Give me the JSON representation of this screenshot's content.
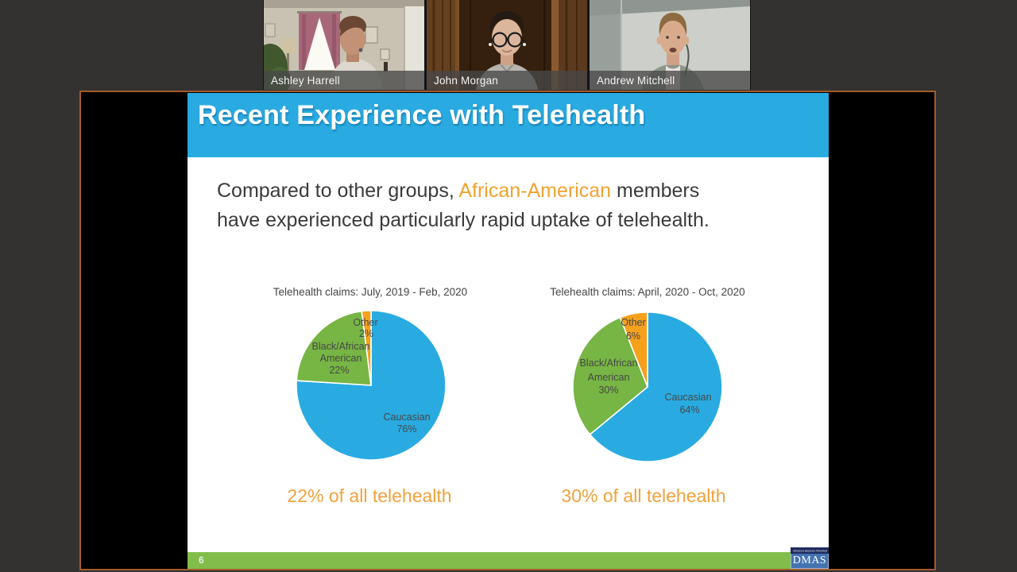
{
  "participants": [
    {
      "name": "Ashley Harrell"
    },
    {
      "name": "John Morgan"
    },
    {
      "name": "Andrew Mitchell"
    }
  ],
  "slide": {
    "title": "Recent Experience with Telehealth",
    "body": {
      "pre": "Compared to other groups, ",
      "highlight": "African-American",
      "post_line1": " members",
      "post_line2": "have experienced particularly rapid uptake of telehealth."
    },
    "footer": {
      "page_number": "6"
    },
    "logo": {
      "tagline": "VIRGINIA'S MEDICAID PROGRAM",
      "text": "DMAS"
    }
  },
  "colors": {
    "slide_accent_blue": "#29abe2",
    "highlight_orange": "#f0a230",
    "footer_green": "#82bd4b",
    "pie_blue": "#29abe2",
    "pie_green": "#77b544",
    "pie_orange": "#f5a11c",
    "share_border_orange": "#a35b28"
  },
  "chart_data": [
    {
      "type": "pie",
      "title": "Telehealth claims: July, 2019 - Feb, 2020",
      "labels": [
        "Caucasian",
        "Black/African American",
        "Other"
      ],
      "values": [
        76,
        22,
        2
      ],
      "legend": "none, labels inside slices",
      "start_angle": "12 o'clock, clockwise",
      "slices": [
        {
          "name": "Caucasian",
          "value": 76,
          "pct_label": "76%",
          "color": "#29abe2"
        },
        {
          "name": "Black/African American",
          "name_line1": "Black/African",
          "name_line2": "American",
          "value": 22,
          "pct_label": "22%",
          "color": "#77b544"
        },
        {
          "name": "Other",
          "value": 2,
          "pct_label": "2%",
          "color": "#f5a11c"
        }
      ],
      "caption": "22% of all telehealth"
    },
    {
      "type": "pie",
      "title": "Telehealth claims: April, 2020 - Oct, 2020",
      "labels": [
        "Caucasian",
        "Black/African American",
        "Other"
      ],
      "values": [
        64,
        30,
        6
      ],
      "legend": "none, labels inside slices",
      "start_angle": "12 o'clock, clockwise",
      "slices": [
        {
          "name": "Caucasian",
          "value": 64,
          "pct_label": "64%",
          "color": "#29abe2"
        },
        {
          "name": "Black/African American",
          "name_line1": "Black/African",
          "name_line2": "American",
          "value": 30,
          "pct_label": "30%",
          "color": "#77b544"
        },
        {
          "name": "Other",
          "value": 6,
          "pct_label": "6%",
          "color": "#f5a11c"
        }
      ],
      "caption": "30% of all telehealth"
    }
  ]
}
